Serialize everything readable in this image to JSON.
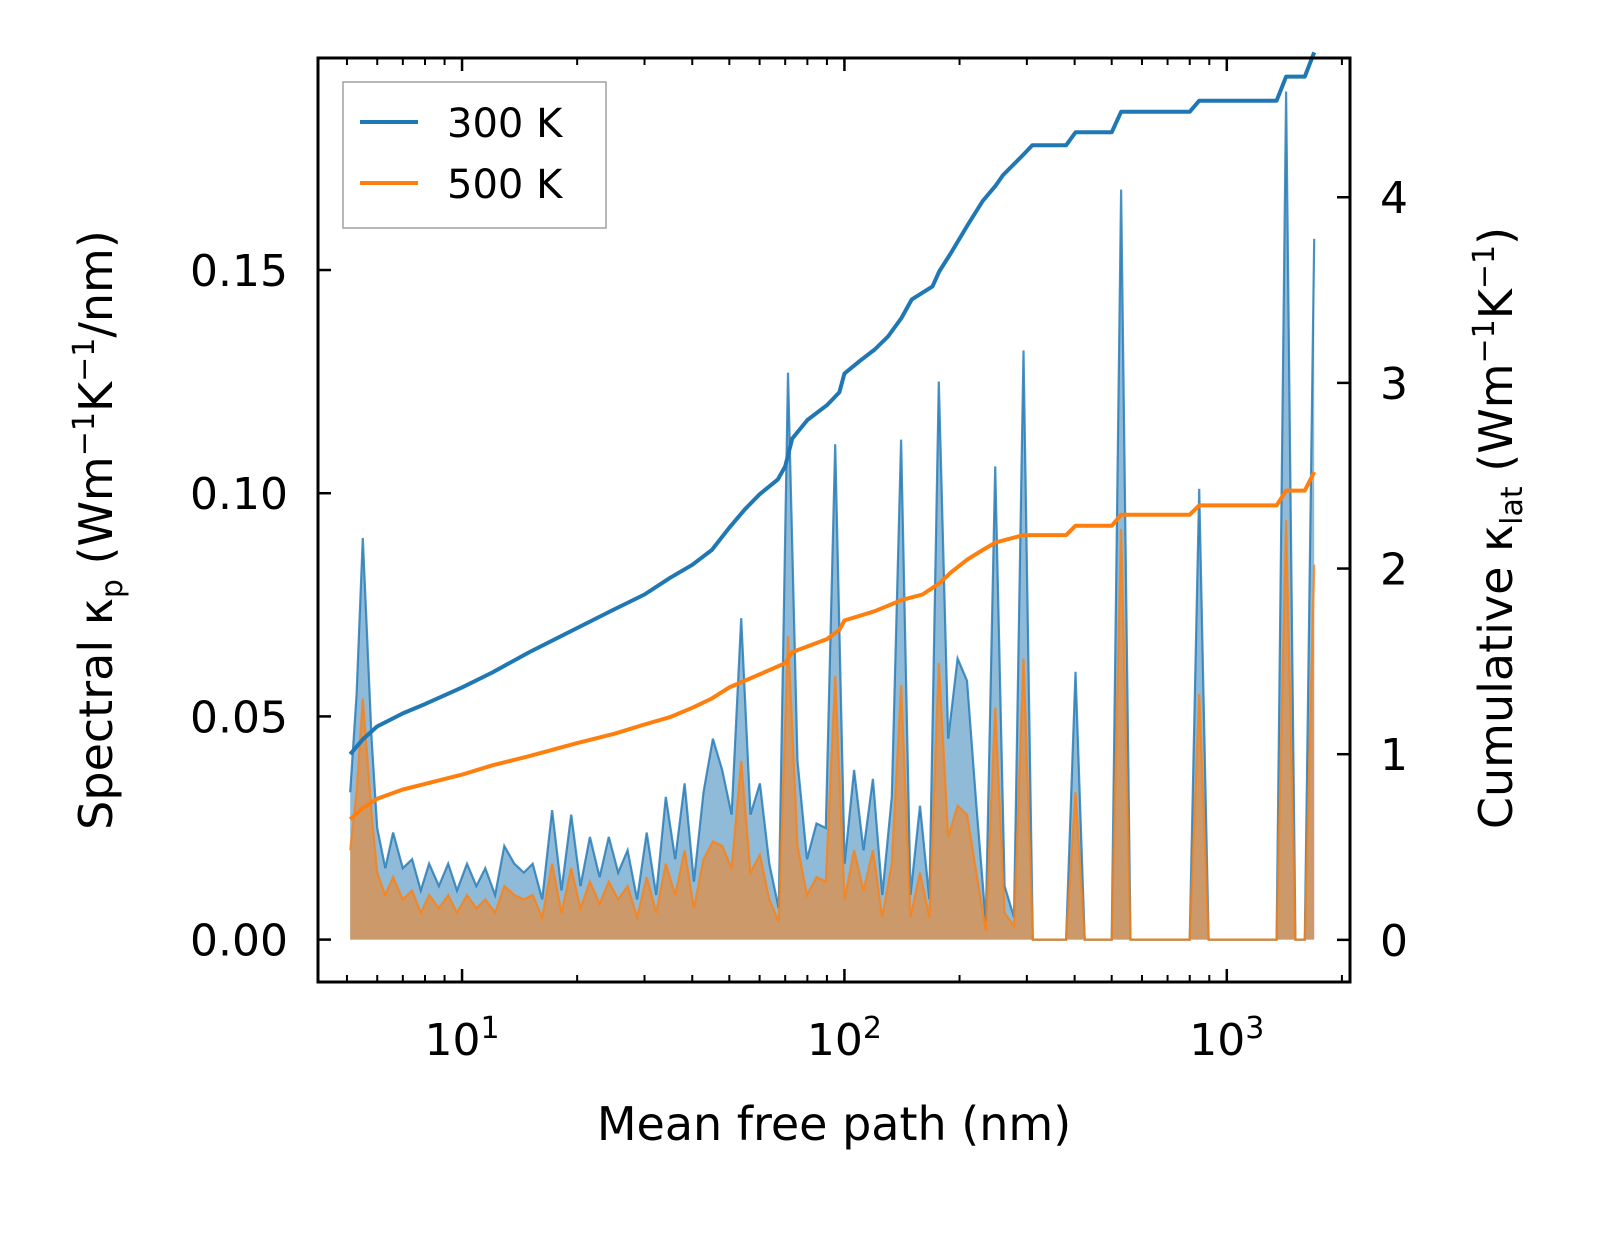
{
  "chart_data": {
    "type": "line",
    "xscale": "log",
    "xlabel": "Mean free path (nm)",
    "ylabel_left": {
      "prefix": "Spectral κ",
      "sub": "p",
      "unit_open": " (Wm",
      "sup1": "−1",
      "mid": "K",
      "sup2": "−1",
      "tail": "/nm)"
    },
    "ylabel_right": {
      "prefix": "Cumulative κ",
      "sub": "lat",
      "unit_open": " (Wm",
      "sup1": "−1",
      "mid": "K",
      "sup2": "−1",
      "tail": ")"
    },
    "xlim": [
      4.2,
      2100
    ],
    "ylim_left": [
      -0.0095,
      0.1975
    ],
    "ylim_right": [
      -0.227,
      4.75
    ],
    "xticks": [
      {
        "value": 10,
        "base": "10",
        "exp": "1"
      },
      {
        "value": 100,
        "base": "10",
        "exp": "2"
      },
      {
        "value": 1000,
        "base": "10",
        "exp": "3"
      }
    ],
    "yticks_left": [
      {
        "value": 0.0,
        "label": "0.00"
      },
      {
        "value": 0.05,
        "label": "0.05"
      },
      {
        "value": 0.1,
        "label": "0.10"
      },
      {
        "value": 0.15,
        "label": "0.15"
      }
    ],
    "yticks_right": [
      {
        "value": 0,
        "label": "0"
      },
      {
        "value": 1,
        "label": "1"
      },
      {
        "value": 2,
        "label": "2"
      },
      {
        "value": 3,
        "label": "3"
      },
      {
        "value": 4,
        "label": "4"
      }
    ],
    "legend": {
      "position": "top-left",
      "entries": [
        "300 K",
        "500 K"
      ]
    },
    "colors": {
      "300 K": "#1f77b4",
      "500 K": "#ff7f0e"
    },
    "spectral_series": [
      {
        "name": "300 K",
        "axis": "left",
        "points": [
          [
            5.1,
            0.033
          ],
          [
            5.3,
            0.055
          ],
          [
            5.5,
            0.09
          ],
          [
            5.8,
            0.045
          ],
          [
            6.0,
            0.025
          ],
          [
            6.3,
            0.016
          ],
          [
            6.6,
            0.024
          ],
          [
            7.0,
            0.016
          ],
          [
            7.4,
            0.018
          ],
          [
            7.8,
            0.011
          ],
          [
            8.2,
            0.017
          ],
          [
            8.7,
            0.012
          ],
          [
            9.2,
            0.017
          ],
          [
            9.7,
            0.011
          ],
          [
            10.3,
            0.017
          ],
          [
            10.9,
            0.012
          ],
          [
            11.5,
            0.016
          ],
          [
            12.2,
            0.01
          ],
          [
            12.9,
            0.021
          ],
          [
            13.7,
            0.017
          ],
          [
            14.5,
            0.015
          ],
          [
            15.3,
            0.017
          ],
          [
            16.2,
            0.009
          ],
          [
            17.2,
            0.029
          ],
          [
            18.2,
            0.011
          ],
          [
            19.3,
            0.028
          ],
          [
            20.4,
            0.012
          ],
          [
            21.6,
            0.023
          ],
          [
            22.9,
            0.014
          ],
          [
            24.2,
            0.023
          ],
          [
            25.6,
            0.015
          ],
          [
            27.1,
            0.02
          ],
          [
            28.7,
            0.009
          ],
          [
            30.4,
            0.024
          ],
          [
            32.2,
            0.01
          ],
          [
            34.1,
            0.032
          ],
          [
            36.1,
            0.018
          ],
          [
            38.2,
            0.035
          ],
          [
            40.4,
            0.013
          ],
          [
            42.8,
            0.033
          ],
          [
            45.3,
            0.045
          ],
          [
            47.9,
            0.038
          ],
          [
            50.7,
            0.028
          ],
          [
            53.7,
            0.072
          ],
          [
            56.8,
            0.028
          ],
          [
            60.1,
            0.035
          ],
          [
            63.6,
            0.017
          ],
          [
            67.3,
            0.007
          ],
          [
            71.2,
            0.127
          ],
          [
            75.4,
            0.04
          ],
          [
            79.8,
            0.018
          ],
          [
            84.5,
            0.026
          ],
          [
            89.4,
            0.025
          ],
          [
            94.6,
            0.111
          ],
          [
            100.1,
            0.017
          ],
          [
            106,
            0.038
          ],
          [
            112.2,
            0.02
          ],
          [
            118.7,
            0.036
          ],
          [
            125.6,
            0.01
          ],
          [
            133,
            0.032
          ],
          [
            140.7,
            0.112
          ],
          [
            148.9,
            0.01
          ],
          [
            157.6,
            0.03
          ],
          [
            166.8,
            0.009
          ],
          [
            176.5,
            0.125
          ],
          [
            186.8,
            0.045
          ],
          [
            197.7,
            0.063
          ],
          [
            209.2,
            0.058
          ],
          [
            221.4,
            0.03
          ],
          [
            234.3,
            0.004
          ],
          [
            247.9,
            0.106
          ],
          [
            262.4,
            0.012
          ],
          [
            277.7,
            0.005
          ],
          [
            293.9,
            0.132
          ],
          [
            311,
            0.0
          ],
          [
            380,
            0.0
          ],
          [
            402,
            0.06
          ],
          [
            425,
            0.0
          ],
          [
            500,
            0.0
          ],
          [
            529,
            0.168
          ],
          [
            560,
            0.0
          ],
          [
            800,
            0.0
          ],
          [
            847,
            0.101
          ],
          [
            896,
            0.0
          ],
          [
            1350,
            0.0
          ],
          [
            1429,
            0.19
          ],
          [
            1512,
            0.0
          ],
          [
            1600,
            0.0
          ],
          [
            1693,
            0.157
          ]
        ]
      },
      {
        "name": "500 K",
        "axis": "left",
        "points": [
          [
            5.1,
            0.02
          ],
          [
            5.3,
            0.033
          ],
          [
            5.5,
            0.054
          ],
          [
            5.8,
            0.028
          ],
          [
            6.0,
            0.015
          ],
          [
            6.3,
            0.01
          ],
          [
            6.6,
            0.014
          ],
          [
            7.0,
            0.009
          ],
          [
            7.4,
            0.011
          ],
          [
            7.8,
            0.006
          ],
          [
            8.2,
            0.01
          ],
          [
            8.7,
            0.007
          ],
          [
            9.2,
            0.01
          ],
          [
            9.7,
            0.006
          ],
          [
            10.3,
            0.01
          ],
          [
            10.9,
            0.007
          ],
          [
            11.5,
            0.009
          ],
          [
            12.2,
            0.006
          ],
          [
            12.9,
            0.012
          ],
          [
            13.7,
            0.01
          ],
          [
            14.5,
            0.009
          ],
          [
            15.3,
            0.01
          ],
          [
            16.2,
            0.005
          ],
          [
            17.2,
            0.017
          ],
          [
            18.2,
            0.006
          ],
          [
            19.3,
            0.016
          ],
          [
            20.4,
            0.007
          ],
          [
            21.6,
            0.013
          ],
          [
            22.9,
            0.008
          ],
          [
            24.2,
            0.013
          ],
          [
            25.6,
            0.009
          ],
          [
            27.1,
            0.012
          ],
          [
            28.7,
            0.005
          ],
          [
            30.4,
            0.014
          ],
          [
            32.2,
            0.006
          ],
          [
            34.1,
            0.017
          ],
          [
            36.1,
            0.01
          ],
          [
            38.2,
            0.02
          ],
          [
            40.4,
            0.007
          ],
          [
            42.8,
            0.018
          ],
          [
            45.3,
            0.022
          ],
          [
            47.9,
            0.021
          ],
          [
            50.7,
            0.016
          ],
          [
            53.7,
            0.04
          ],
          [
            56.8,
            0.015
          ],
          [
            60.1,
            0.019
          ],
          [
            63.6,
            0.009
          ],
          [
            67.3,
            0.004
          ],
          [
            71.2,
            0.068
          ],
          [
            75.4,
            0.021
          ],
          [
            79.8,
            0.01
          ],
          [
            84.5,
            0.014
          ],
          [
            89.4,
            0.013
          ],
          [
            94.6,
            0.059
          ],
          [
            100.1,
            0.009
          ],
          [
            106,
            0.02
          ],
          [
            112.2,
            0.011
          ],
          [
            118.7,
            0.02
          ],
          [
            125.6,
            0.005
          ],
          [
            133,
            0.017
          ],
          [
            140.7,
            0.057
          ],
          [
            148.9,
            0.005
          ],
          [
            157.6,
            0.015
          ],
          [
            166.8,
            0.005
          ],
          [
            176.5,
            0.062
          ],
          [
            186.8,
            0.023
          ],
          [
            197.7,
            0.03
          ],
          [
            209.2,
            0.028
          ],
          [
            221.4,
            0.015
          ],
          [
            234.3,
            0.002
          ],
          [
            247.9,
            0.052
          ],
          [
            262.4,
            0.006
          ],
          [
            277.7,
            0.003
          ],
          [
            293.9,
            0.063
          ],
          [
            311,
            0.0
          ],
          [
            380,
            0.0
          ],
          [
            402,
            0.033
          ],
          [
            425,
            0.0
          ],
          [
            500,
            0.0
          ],
          [
            529,
            0.092
          ],
          [
            560,
            0.0
          ],
          [
            800,
            0.0
          ],
          [
            847,
            0.055
          ],
          [
            896,
            0.0
          ],
          [
            1350,
            0.0
          ],
          [
            1429,
            0.094
          ],
          [
            1512,
            0.0
          ],
          [
            1600,
            0.0
          ],
          [
            1693,
            0.084
          ]
        ]
      }
    ],
    "cumulative_series": [
      {
        "name": "300 K",
        "axis": "right",
        "points": [
          [
            5.1,
            1.0
          ],
          [
            5.5,
            1.08
          ],
          [
            6.0,
            1.15
          ],
          [
            7.0,
            1.22
          ],
          [
            8.0,
            1.27
          ],
          [
            10,
            1.36
          ],
          [
            12,
            1.44
          ],
          [
            15,
            1.55
          ],
          [
            20,
            1.68
          ],
          [
            25,
            1.78
          ],
          [
            30,
            1.86
          ],
          [
            35,
            1.95
          ],
          [
            40,
            2.02
          ],
          [
            45,
            2.1
          ],
          [
            50,
            2.22
          ],
          [
            55,
            2.32
          ],
          [
            60,
            2.4
          ],
          [
            67,
            2.48
          ],
          [
            70,
            2.55
          ],
          [
            73,
            2.7
          ],
          [
            80,
            2.8
          ],
          [
            90,
            2.88
          ],
          [
            97,
            2.95
          ],
          [
            100,
            3.05
          ],
          [
            110,
            3.12
          ],
          [
            120,
            3.18
          ],
          [
            130,
            3.25
          ],
          [
            141,
            3.35
          ],
          [
            150,
            3.45
          ],
          [
            170,
            3.52
          ],
          [
            177,
            3.6
          ],
          [
            190,
            3.7
          ],
          [
            210,
            3.85
          ],
          [
            230,
            3.98
          ],
          [
            248,
            4.06
          ],
          [
            260,
            4.12
          ],
          [
            294,
            4.23
          ],
          [
            310,
            4.28
          ],
          [
            380,
            4.28
          ],
          [
            402,
            4.35
          ],
          [
            500,
            4.35
          ],
          [
            529,
            4.46
          ],
          [
            800,
            4.46
          ],
          [
            847,
            4.52
          ],
          [
            1350,
            4.52
          ],
          [
            1429,
            4.65
          ],
          [
            1600,
            4.65
          ],
          [
            1693,
            4.78
          ]
        ]
      },
      {
        "name": "500 K",
        "axis": "right",
        "points": [
          [
            5.1,
            0.65
          ],
          [
            5.5,
            0.71
          ],
          [
            6.0,
            0.76
          ],
          [
            7.0,
            0.81
          ],
          [
            8.0,
            0.84
          ],
          [
            10,
            0.89
          ],
          [
            12,
            0.94
          ],
          [
            15,
            0.99
          ],
          [
            20,
            1.06
          ],
          [
            25,
            1.11
          ],
          [
            30,
            1.16
          ],
          [
            35,
            1.2
          ],
          [
            40,
            1.25
          ],
          [
            45,
            1.3
          ],
          [
            50,
            1.36
          ],
          [
            60,
            1.43
          ],
          [
            70,
            1.49
          ],
          [
            73,
            1.55
          ],
          [
            90,
            1.62
          ],
          [
            97,
            1.67
          ],
          [
            100,
            1.72
          ],
          [
            120,
            1.77
          ],
          [
            141,
            1.83
          ],
          [
            160,
            1.86
          ],
          [
            177,
            1.92
          ],
          [
            190,
            1.98
          ],
          [
            210,
            2.05
          ],
          [
            230,
            2.1
          ],
          [
            248,
            2.14
          ],
          [
            294,
            2.18
          ],
          [
            380,
            2.18
          ],
          [
            402,
            2.23
          ],
          [
            500,
            2.23
          ],
          [
            529,
            2.29
          ],
          [
            800,
            2.29
          ],
          [
            847,
            2.34
          ],
          [
            1350,
            2.34
          ],
          [
            1429,
            2.42
          ],
          [
            1600,
            2.42
          ],
          [
            1693,
            2.52
          ]
        ]
      }
    ]
  }
}
